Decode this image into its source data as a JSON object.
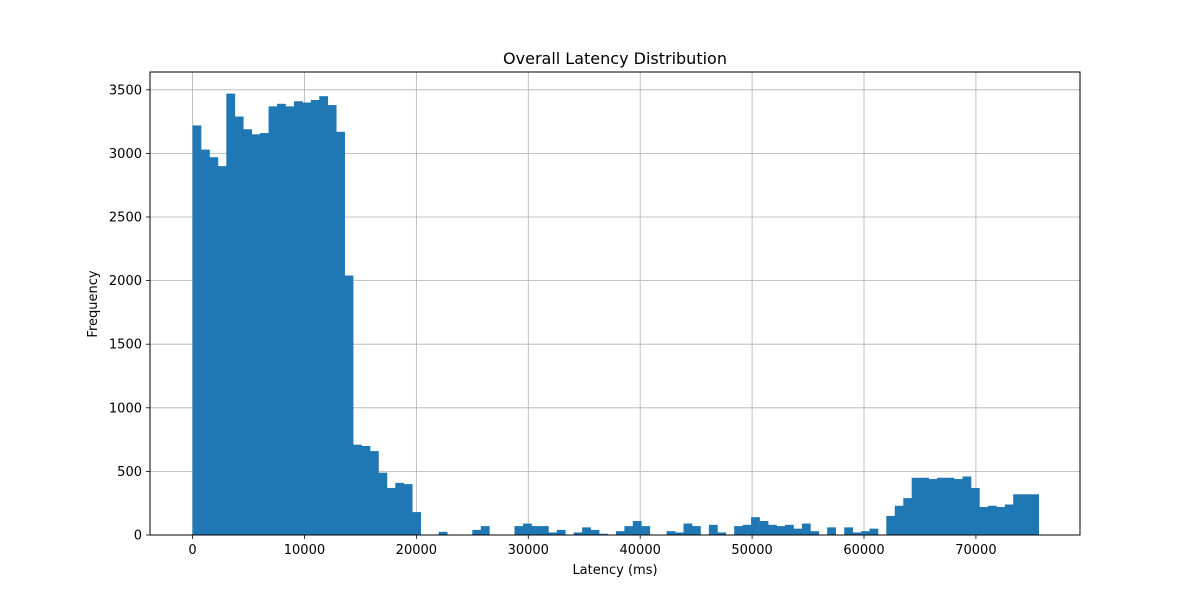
{
  "chart_data": {
    "type": "bar",
    "title": "Overall Latency Distribution",
    "xlabel": "Latency (ms)",
    "ylabel": "Frequency",
    "xlim": [
      -3800,
      79300
    ],
    "ylim": [
      0,
      3640
    ],
    "xticks": [
      0,
      10000,
      20000,
      30000,
      40000,
      50000,
      60000,
      70000
    ],
    "yticks": [
      0,
      500,
      1000,
      1500,
      2000,
      2500,
      3000,
      3500
    ],
    "grid": true,
    "legend": "none",
    "bar_color": "#1f77b4",
    "bin_width": 755,
    "bins": [
      [
        0,
        3220
      ],
      [
        755,
        3030
      ],
      [
        1510,
        2970
      ],
      [
        2265,
        2900
      ],
      [
        3020,
        3470
      ],
      [
        3775,
        3290
      ],
      [
        4530,
        3190
      ],
      [
        5285,
        3150
      ],
      [
        6040,
        3160
      ],
      [
        6795,
        3370
      ],
      [
        7550,
        3390
      ],
      [
        8305,
        3370
      ],
      [
        9060,
        3410
      ],
      [
        9815,
        3400
      ],
      [
        10570,
        3420
      ],
      [
        11325,
        3450
      ],
      [
        12080,
        3380
      ],
      [
        12835,
        3170
      ],
      [
        13590,
        2040
      ],
      [
        14345,
        710
      ],
      [
        15100,
        700
      ],
      [
        15855,
        660
      ],
      [
        16610,
        490
      ],
      [
        17365,
        370
      ],
      [
        18120,
        410
      ],
      [
        18875,
        400
      ],
      [
        19630,
        180
      ],
      [
        22000,
        25
      ],
      [
        25000,
        40
      ],
      [
        25760,
        70
      ],
      [
        28770,
        70
      ],
      [
        29530,
        90
      ],
      [
        30280,
        70
      ],
      [
        31040,
        70
      ],
      [
        31800,
        20
      ],
      [
        32550,
        40
      ],
      [
        34060,
        20
      ],
      [
        34810,
        60
      ],
      [
        35570,
        40
      ],
      [
        36320,
        10
      ],
      [
        37830,
        30
      ],
      [
        38590,
        70
      ],
      [
        39340,
        110
      ],
      [
        40100,
        70
      ],
      [
        42360,
        30
      ],
      [
        43120,
        20
      ],
      [
        43870,
        90
      ],
      [
        44630,
        70
      ],
      [
        46140,
        80
      ],
      [
        46890,
        20
      ],
      [
        48400,
        70
      ],
      [
        49160,
        80
      ],
      [
        49910,
        140
      ],
      [
        50670,
        110
      ],
      [
        51420,
        80
      ],
      [
        52180,
        70
      ],
      [
        52940,
        80
      ],
      [
        53690,
        50
      ],
      [
        54450,
        90
      ],
      [
        55200,
        30
      ],
      [
        56710,
        60
      ],
      [
        58230,
        60
      ],
      [
        58980,
        20
      ],
      [
        59740,
        30
      ],
      [
        60490,
        50
      ],
      [
        61990,
        150
      ],
      [
        62750,
        230
      ],
      [
        63510,
        290
      ],
      [
        64260,
        450
      ],
      [
        65020,
        450
      ],
      [
        65770,
        440
      ],
      [
        66530,
        450
      ],
      [
        67290,
        450
      ],
      [
        68040,
        440
      ],
      [
        68800,
        460
      ],
      [
        69550,
        370
      ],
      [
        70310,
        220
      ],
      [
        71070,
        230
      ],
      [
        71820,
        220
      ],
      [
        72580,
        240
      ],
      [
        73330,
        320
      ],
      [
        74090,
        320
      ],
      [
        74850,
        320
      ]
    ]
  }
}
